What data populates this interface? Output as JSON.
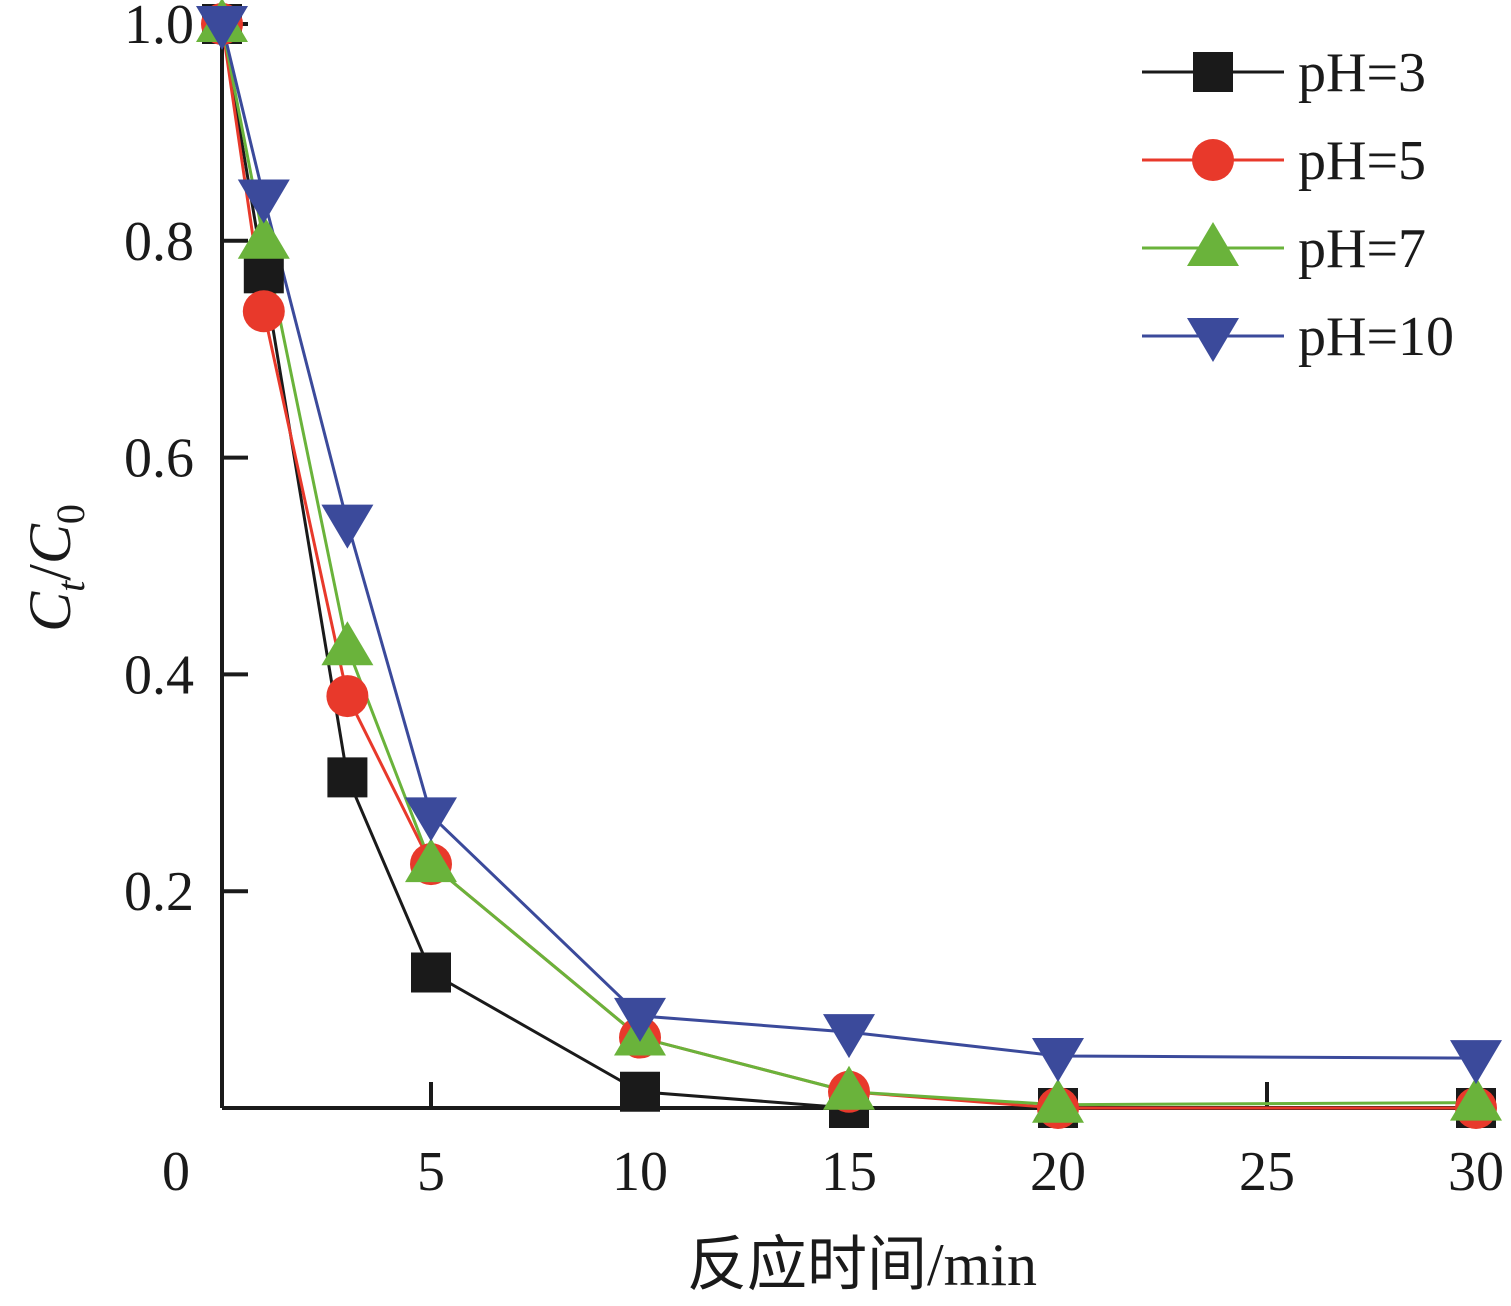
{
  "chart_data": {
    "type": "line",
    "xlabel": "反应时间/min",
    "ylabel": {
      "c1": "C",
      "sub1": "t",
      "slash": "/",
      "c2": "C",
      "sub2": "0"
    },
    "xlim": [
      0,
      30
    ],
    "ylim": [
      0,
      1.0
    ],
    "x_ticks": [
      0,
      5,
      10,
      15,
      20,
      25,
      30
    ],
    "x_tick_labels": [
      "0",
      "5",
      "10",
      "15",
      "20",
      "25",
      "30"
    ],
    "y_ticks": [
      0.2,
      0.4,
      0.6,
      0.8,
      1.0
    ],
    "y_tick_labels": [
      "0.2",
      "0.4",
      "0.6",
      "0.8",
      "1.0"
    ],
    "grid": false,
    "legend_position": "top-right",
    "series": [
      {
        "name": "pH=3",
        "color": "#1a1a1a",
        "marker": "square",
        "x": [
          0,
          1,
          3,
          5,
          10,
          15,
          20,
          30
        ],
        "y": [
          1.0,
          0.77,
          0.305,
          0.125,
          0.015,
          0.0,
          0.0,
          0.0
        ]
      },
      {
        "name": "pH=5",
        "color": "#e8392b",
        "marker": "circle",
        "x": [
          0,
          1,
          3,
          5,
          10,
          15,
          20,
          30
        ],
        "y": [
          1.0,
          0.735,
          0.38,
          0.225,
          0.065,
          0.015,
          0.0,
          0.0
        ]
      },
      {
        "name": "pH=7",
        "color": "#6ab33b",
        "marker": "triangle-up",
        "x": [
          0,
          1,
          3,
          5,
          10,
          15,
          20,
          30
        ],
        "y": [
          1.0,
          0.8,
          0.425,
          0.225,
          0.065,
          0.015,
          0.003,
          0.005
        ]
      },
      {
        "name": "pH=10",
        "color": "#3b4a9b",
        "marker": "triangle-down",
        "x": [
          0,
          1,
          3,
          5,
          10,
          15,
          20,
          30
        ],
        "y": [
          1.0,
          0.84,
          0.54,
          0.27,
          0.085,
          0.07,
          0.048,
          0.046
        ]
      }
    ]
  }
}
